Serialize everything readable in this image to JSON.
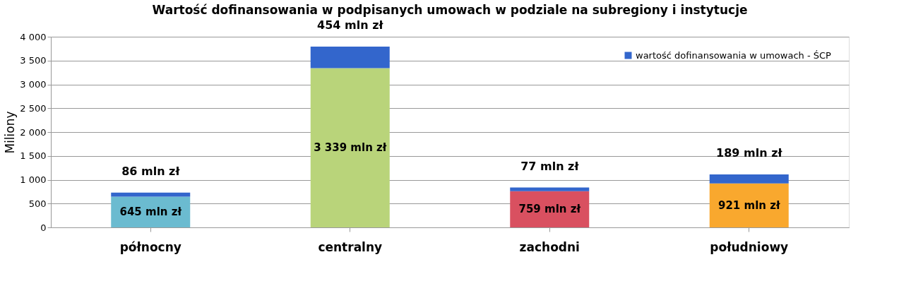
{
  "chart_data": {
    "type": "bar",
    "title": "Wartość dofinansowania w podpisanych umowach w podziale na subregiony i instytucje",
    "ylabel": "Miliony",
    "categories": [
      "północny",
      "centralny",
      "zachodni",
      "południowy"
    ],
    "stacked": true,
    "series": [
      {
        "colors": [
          "#6bbbd0",
          "#b9d47a",
          "#d95060",
          "#f9a82e"
        ],
        "values": [
          645,
          3339,
          759,
          921
        ],
        "value_labels": [
          "645 mln zł",
          "3 339 mln zł",
          "759 mln zł",
          "921 mln zł"
        ]
      },
      {
        "name": "wartość dofinansowania w umowach -  ŚCP",
        "color": "#3366cc",
        "values": [
          86,
          454,
          77,
          189
        ],
        "value_labels": [
          "86 mln zł",
          "454 mln zł",
          "77 mln zł",
          "189 mln zł"
        ]
      }
    ],
    "ylim": [
      0,
      4000
    ],
    "yticks": [
      0,
      {
        "value": 500,
        "label": "500"
      },
      {
        "value": 1000,
        "label": "1 000"
      },
      {
        "value": 1500,
        "label": "1 500"
      },
      {
        "value": 2000,
        "label": "2 000"
      },
      {
        "value": 2500,
        "label": "2 500"
      },
      {
        "value": 3000,
        "label": "3 000"
      },
      {
        "value": 3500,
        "label": "3 500"
      },
      {
        "value": 4000,
        "label": "4 000"
      }
    ],
    "grid": "y",
    "legend": "top right"
  }
}
